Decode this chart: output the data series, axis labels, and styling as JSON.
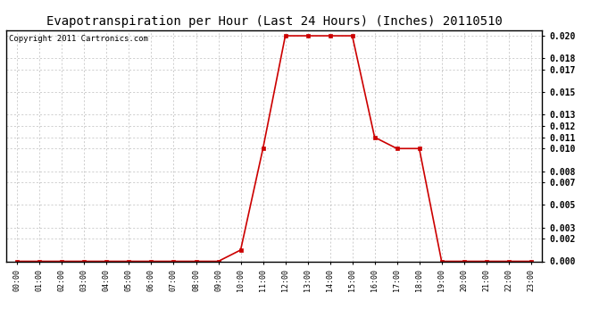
{
  "title": "Evapotranspiration per Hour (Last 24 Hours) (Inches) 20110510",
  "copyright": "Copyright 2011 Cartronics.com",
  "hours": [
    "00:00",
    "01:00",
    "02:00",
    "03:00",
    "04:00",
    "05:00",
    "06:00",
    "07:00",
    "08:00",
    "09:00",
    "10:00",
    "11:00",
    "12:00",
    "13:00",
    "14:00",
    "15:00",
    "16:00",
    "17:00",
    "18:00",
    "19:00",
    "20:00",
    "21:00",
    "22:00",
    "23:00"
  ],
  "values": [
    0.0,
    0.0,
    0.0,
    0.0,
    0.0,
    0.0,
    0.0,
    0.0,
    0.0,
    0.0,
    0.001,
    0.01,
    0.02,
    0.02,
    0.02,
    0.02,
    0.011,
    0.01,
    0.01,
    0.0,
    0.0,
    0.0,
    0.0,
    0.0
  ],
  "line_color": "#cc0000",
  "marker": "s",
  "marker_size": 2.5,
  "ylim": [
    0.0,
    0.0205
  ],
  "yticks": [
    0.0,
    0.002,
    0.003,
    0.005,
    0.007,
    0.008,
    0.01,
    0.011,
    0.012,
    0.013,
    0.015,
    0.017,
    0.018,
    0.02
  ],
  "background_color": "#ffffff",
  "grid_color": "#bbbbbb",
  "title_fontsize": 10,
  "copyright_fontsize": 6.5,
  "tick_fontsize": 7,
  "xtick_fontsize": 6
}
